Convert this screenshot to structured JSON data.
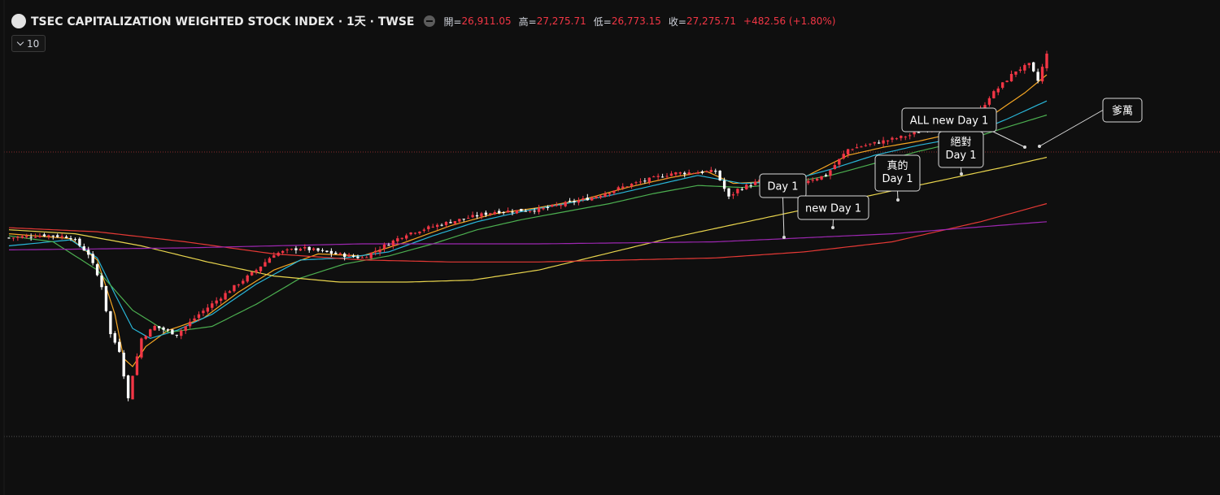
{
  "header": {
    "title": "TSEC CAPITALIZATION WEIGHTED STOCK INDEX · 1天 · TWSE",
    "open_label": "開=",
    "open_value": "26,911.05",
    "high_label": "高=",
    "high_value": "27,275.71",
    "low_label": "低=",
    "low_value": "26,773.15",
    "close_label": "收=",
    "close_value": "27,275.71",
    "change": "+482.56 (+1.80%)"
  },
  "indicator_toggle": {
    "count": "10",
    "icon": "chevron-down-icon"
  },
  "colors": {
    "background": "#0f0f0f",
    "up_candle": "#f23645",
    "down_candle": "#ffffff",
    "ma_orange": "#f5a623",
    "ma_cyan": "#29b6d8",
    "ma_green": "#4caf50",
    "ma_yellow": "#e8d44d",
    "ma_red": "#e53935",
    "ma_purple": "#9c27b0",
    "annotation_border": "#d9d9d9"
  },
  "annotations": [
    {
      "label": "Day 1"
    },
    {
      "label": "new Day 1"
    },
    {
      "label": "真的 Day 1"
    },
    {
      "label": "絕對 Day 1"
    },
    {
      "label": "ALL new Day 1"
    },
    {
      "label": "爹萬"
    }
  ],
  "chart_data": {
    "type": "candlestick",
    "title": "TSEC CAPITALIZATION WEIGHTED STOCK INDEX · 1天 · TWSE",
    "interval": "1天",
    "last_bar": {
      "open": 26911.05,
      "high": 27275.71,
      "low": 26773.15,
      "close": 27275.71,
      "change": 482.56,
      "change_pct": 1.8
    },
    "ylim": [
      17300,
      27800
    ],
    "grid": false,
    "legend": "none",
    "up_color": "#f23645",
    "down_color": "#ffffff",
    "close_path": [
      [
        0,
        22700
      ],
      [
        8,
        22770
      ],
      [
        14,
        22720
      ],
      [
        18,
        22300
      ],
      [
        21,
        21500
      ],
      [
        23,
        20300
      ],
      [
        25,
        19900
      ],
      [
        27,
        18700
      ],
      [
        28,
        19300
      ],
      [
        30,
        20200
      ],
      [
        33,
        20500
      ],
      [
        38,
        20300
      ],
      [
        43,
        20800
      ],
      [
        50,
        21400
      ],
      [
        56,
        21900
      ],
      [
        60,
        22300
      ],
      [
        66,
        22450
      ],
      [
        74,
        22300
      ],
      [
        80,
        22200
      ],
      [
        90,
        22800
      ],
      [
        100,
        23100
      ],
      [
        110,
        23350
      ],
      [
        120,
        23400
      ],
      [
        132,
        23700
      ],
      [
        140,
        24000
      ],
      [
        150,
        24300
      ],
      [
        160,
        24350
      ],
      [
        163,
        23700
      ],
      [
        165,
        23900
      ],
      [
        172,
        24200
      ],
      [
        178,
        24050
      ],
      [
        185,
        24250
      ],
      [
        190,
        24900
      ],
      [
        198,
        25100
      ],
      [
        204,
        25250
      ],
      [
        210,
        25500
      ],
      [
        214,
        25150
      ],
      [
        218,
        25550
      ],
      [
        222,
        26200
      ],
      [
        228,
        26850
      ],
      [
        231,
        27000
      ],
      [
        233,
        26600
      ],
      [
        235,
        27275.71
      ]
    ],
    "moving_averages": [
      {
        "color": "#f5a623",
        "points": [
          [
            0,
            22800
          ],
          [
            14,
            22680
          ],
          [
            20,
            22150
          ],
          [
            24,
            20800
          ],
          [
            26,
            19700
          ],
          [
            28,
            19500
          ],
          [
            31,
            20000
          ],
          [
            36,
            20400
          ],
          [
            44,
            20700
          ],
          [
            52,
            21350
          ],
          [
            60,
            21900
          ],
          [
            70,
            22300
          ],
          [
            80,
            22250
          ],
          [
            90,
            22600
          ],
          [
            100,
            23000
          ],
          [
            110,
            23300
          ],
          [
            120,
            23450
          ],
          [
            130,
            23650
          ],
          [
            140,
            23950
          ],
          [
            150,
            24200
          ],
          [
            158,
            24350
          ],
          [
            164,
            24050
          ],
          [
            172,
            24100
          ],
          [
            180,
            24200
          ],
          [
            190,
            24750
          ],
          [
            198,
            24950
          ],
          [
            206,
            25100
          ],
          [
            214,
            25300
          ],
          [
            222,
            25700
          ],
          [
            230,
            26300
          ],
          [
            235,
            26750
          ]
        ]
      },
      {
        "color": "#29b6d8",
        "points": [
          [
            0,
            22500
          ],
          [
            14,
            22650
          ],
          [
            20,
            22200
          ],
          [
            24,
            21300
          ],
          [
            28,
            20450
          ],
          [
            32,
            20200
          ],
          [
            38,
            20400
          ],
          [
            46,
            20800
          ],
          [
            56,
            21550
          ],
          [
            66,
            22150
          ],
          [
            76,
            22200
          ],
          [
            86,
            22350
          ],
          [
            96,
            22750
          ],
          [
            106,
            23100
          ],
          [
            116,
            23350
          ],
          [
            126,
            23550
          ],
          [
            136,
            23750
          ],
          [
            146,
            24000
          ],
          [
            156,
            24250
          ],
          [
            166,
            24050
          ],
          [
            176,
            24100
          ],
          [
            186,
            24400
          ],
          [
            196,
            24750
          ],
          [
            206,
            25000
          ],
          [
            216,
            25200
          ],
          [
            226,
            25650
          ],
          [
            235,
            26100
          ]
        ]
      },
      {
        "color": "#4caf50",
        "points": [
          [
            0,
            22750
          ],
          [
            10,
            22600
          ],
          [
            20,
            21900
          ],
          [
            28,
            20900
          ],
          [
            36,
            20350
          ],
          [
            46,
            20500
          ],
          [
            56,
            21050
          ],
          [
            66,
            21700
          ],
          [
            76,
            22050
          ],
          [
            86,
            22250
          ],
          [
            96,
            22550
          ],
          [
            106,
            22900
          ],
          [
            116,
            23150
          ],
          [
            126,
            23350
          ],
          [
            136,
            23550
          ],
          [
            146,
            23800
          ],
          [
            156,
            24000
          ],
          [
            166,
            23950
          ],
          [
            176,
            24050
          ],
          [
            186,
            24250
          ],
          [
            196,
            24550
          ],
          [
            206,
            24850
          ],
          [
            216,
            25100
          ],
          [
            226,
            25450
          ],
          [
            235,
            25750
          ]
        ]
      },
      {
        "color": "#e8d44d",
        "points": [
          [
            0,
            22900
          ],
          [
            15,
            22800
          ],
          [
            30,
            22500
          ],
          [
            45,
            22100
          ],
          [
            60,
            21750
          ],
          [
            75,
            21600
          ],
          [
            90,
            21600
          ],
          [
            105,
            21650
          ],
          [
            120,
            21900
          ],
          [
            135,
            22300
          ],
          [
            150,
            22700
          ],
          [
            165,
            23050
          ],
          [
            180,
            23400
          ],
          [
            195,
            23750
          ],
          [
            210,
            24100
          ],
          [
            225,
            24450
          ],
          [
            235,
            24700
          ]
        ]
      },
      {
        "color": "#e53935",
        "points": [
          [
            0,
            22950
          ],
          [
            20,
            22850
          ],
          [
            40,
            22600
          ],
          [
            60,
            22300
          ],
          [
            80,
            22150
          ],
          [
            100,
            22100
          ],
          [
            120,
            22100
          ],
          [
            140,
            22150
          ],
          [
            160,
            22200
          ],
          [
            180,
            22350
          ],
          [
            200,
            22600
          ],
          [
            220,
            23100
          ],
          [
            235,
            23550
          ]
        ]
      },
      {
        "color": "#9c27b0",
        "points": [
          [
            0,
            22400
          ],
          [
            40,
            22450
          ],
          [
            80,
            22550
          ],
          [
            120,
            22550
          ],
          [
            160,
            22600
          ],
          [
            200,
            22800
          ],
          [
            235,
            23100
          ]
        ]
      }
    ]
  }
}
